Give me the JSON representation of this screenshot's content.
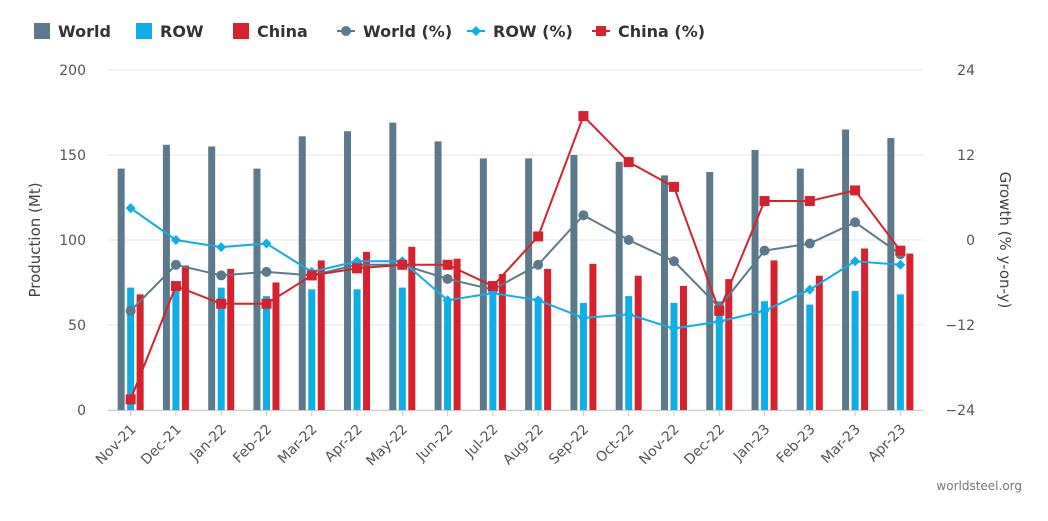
{
  "chart_data": {
    "type": "bar",
    "categories": [
      "Nov-21",
      "Dec-21",
      "Jan-22",
      "Feb-22",
      "Mar-22",
      "Apr-22",
      "May-22",
      "Jun-22",
      "Jul-22",
      "Aug-22",
      "Sep-22",
      "Oct-22",
      "Nov-22",
      "Dec-22",
      "Jan-23",
      "Feb-23",
      "Mar-23",
      "Apr-23"
    ],
    "bar_series": [
      {
        "name": "World",
        "color": "#5c7a8c",
        "values": [
          142,
          156,
          155,
          142,
          161,
          164,
          169,
          158,
          148,
          148,
          150,
          146,
          138,
          140,
          153,
          142,
          165,
          160
        ]
      },
      {
        "name": "ROW",
        "color": "#0eaee6",
        "values": [
          72,
          70,
          72,
          67,
          71,
          71,
          72,
          65,
          70,
          66,
          63,
          67,
          63,
          64,
          64,
          62,
          70,
          68
        ]
      },
      {
        "name": "China",
        "color": "#d5222e",
        "values": [
          68,
          85,
          83,
          75,
          88,
          93,
          96,
          89,
          80,
          83,
          86,
          79,
          73,
          77,
          88,
          79,
          95,
          92
        ]
      }
    ],
    "line_series": [
      {
        "name": "World (%)",
        "color": "#5c7a8c",
        "marker": "circle",
        "values": [
          -10,
          -3.5,
          -5,
          -4.5,
          -5,
          -3.5,
          -3.5,
          -5.5,
          -7,
          -3.5,
          3.5,
          0,
          -3,
          -9.5,
          -1.5,
          -0.5,
          2.5,
          -2
        ]
      },
      {
        "name": "ROW (%)",
        "color": "#0eaee6",
        "marker": "diamond",
        "values": [
          4.5,
          0,
          -1,
          -0.5,
          -4.5,
          -3,
          -3,
          -8.5,
          -7.5,
          -8.5,
          -11,
          -10.5,
          -12.5,
          -11.5,
          -10,
          -7,
          -3,
          -3.5
        ]
      },
      {
        "name": "China (%)",
        "color": "#d5222e",
        "marker": "square",
        "values": [
          -22.5,
          -6.5,
          -9,
          -9,
          -5,
          -4,
          -3.5,
          -3.5,
          -6.5,
          0.5,
          17.5,
          11,
          7.5,
          -10,
          5.5,
          5.5,
          7,
          -1.5
        ]
      }
    ],
    "y_left": {
      "label": "Production (Mt)",
      "min": 0,
      "max": 200,
      "ticks": [
        "0",
        "50",
        "100",
        "150",
        "200"
      ],
      "tick_values": [
        0,
        50,
        100,
        150,
        200
      ]
    },
    "y_right": {
      "label": "Growth (% y-on-y)",
      "min": -24,
      "max": 24,
      "ticks": [
        "−24",
        "−12",
        "0",
        "12",
        "24"
      ],
      "tick_values": [
        -24,
        -12,
        0,
        12,
        24
      ]
    },
    "legend": {
      "position": "top-left",
      "items": [
        "World",
        "ROW",
        "China",
        "World (%)",
        "ROW (%)",
        "China (%)"
      ]
    },
    "grid": true,
    "credit": "worldsteel.org"
  }
}
